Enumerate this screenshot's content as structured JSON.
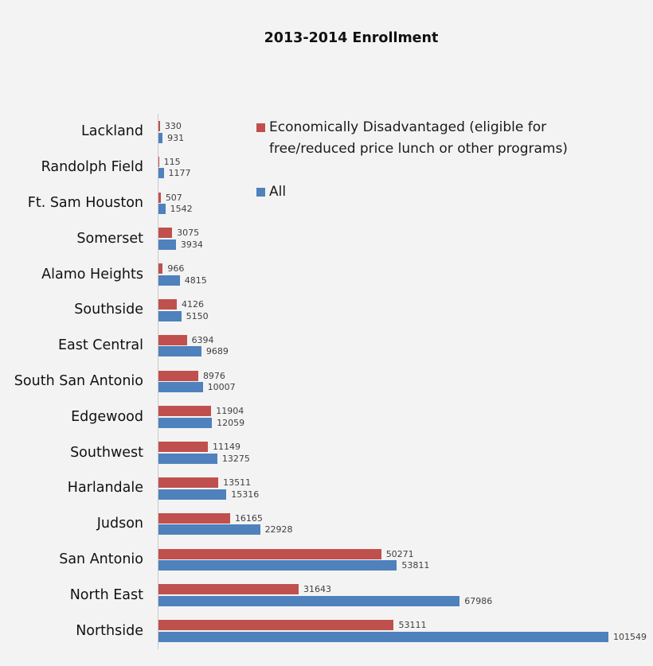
{
  "title": "2013-2014 Enrollment",
  "colors": {
    "disadvantaged": "#c0504d",
    "all": "#4f81bd",
    "background": "#f3f3f3",
    "axis_line": "#c9c9c9",
    "value_label": "#3f3f3f",
    "text": "#111111"
  },
  "legend": [
    {
      "label": "Economically Disadvantaged (eligible for free/reduced price lunch or other programs)",
      "color": "#c0504d"
    },
    {
      "label": "All",
      "color": "#4f81bd"
    }
  ],
  "chart_data": {
    "type": "bar",
    "orientation": "horizontal",
    "title": "2013-2014 Enrollment",
    "xlabel": "",
    "ylabel": "",
    "value_axis_hidden": true,
    "value_labels_shown": true,
    "grid": false,
    "legend_position": "inside-top-right",
    "xlim": [
      0,
      111600
    ],
    "categories": [
      "Lackland",
      "Randolph Field",
      "Ft. Sam Houston",
      "Somerset",
      "Alamo Heights",
      "Southside",
      "East Central",
      "South San Antonio",
      "Edgewood",
      "Southwest",
      "Harlandale",
      "Judson",
      "San Antonio",
      "North East",
      "Northside"
    ],
    "series": [
      {
        "name": "Economically Disadvantaged (eligible for free/reduced price lunch or other programs)",
        "color": "#c0504d",
        "values": [
          330,
          115,
          507,
          3075,
          966,
          4126,
          6394,
          8976,
          11904,
          11149,
          13511,
          16165,
          50271,
          31643,
          53111
        ]
      },
      {
        "name": "All",
        "color": "#4f81bd",
        "values": [
          931,
          1177,
          1542,
          3934,
          4815,
          5150,
          9689,
          10007,
          12059,
          13275,
          15316,
          22928,
          53811,
          67986,
          101549
        ]
      }
    ]
  }
}
